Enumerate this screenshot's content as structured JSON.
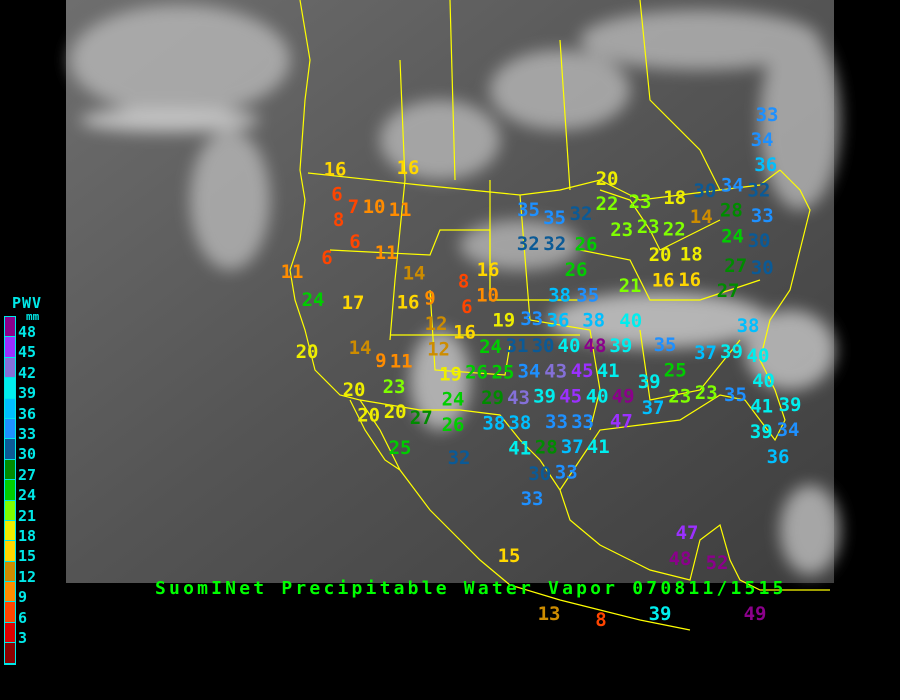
{
  "title": "SuomINet Precipitable Water Vapor 070811/1515",
  "legend": {
    "label": "PWV",
    "unit": "mm",
    "ticks": [
      "48",
      "45",
      "42",
      "39",
      "36",
      "33",
      "30",
      "27",
      "24",
      "21",
      "18",
      "15",
      "12",
      "9",
      "6",
      "3"
    ],
    "colors": [
      "#8b008b",
      "#9b30ff",
      "#8470d8",
      "#00eeee",
      "#00bfff",
      "#1e90ff",
      "#0b5a96",
      "#008b00",
      "#00cd00",
      "#7fff00",
      "#eeee00",
      "#ffd700",
      "#cd8c00",
      "#ff8c00",
      "#ff4500",
      "#dd0000",
      "#8b0000"
    ]
  },
  "stations": [
    "16",
    "6",
    "7",
    "8",
    "10",
    "11",
    "16",
    "6",
    "11",
    "6",
    "11",
    "24",
    "17",
    "14",
    "16",
    "9",
    "8",
    "10",
    "6",
    "16",
    "12",
    "16",
    "19",
    "12",
    "14",
    "9",
    "11",
    "20",
    "19",
    "26",
    "25",
    "24",
    "29",
    "23",
    "20",
    "20",
    "20",
    "27",
    "24",
    "26",
    "25",
    "32",
    "38",
    "38",
    "43",
    "41",
    "28",
    "37",
    "30",
    "33",
    "33",
    "15",
    "13",
    "8",
    "35",
    "35",
    "32",
    "32",
    "32",
    "26",
    "26",
    "21",
    "22",
    "20",
    "23",
    "23",
    "23",
    "22",
    "18",
    "14",
    "28",
    "30",
    "34",
    "20",
    "18",
    "16",
    "16",
    "24",
    "27",
    "27",
    "30",
    "33",
    "34",
    "36",
    "32",
    "33",
    "30",
    "35",
    "38",
    "38",
    "33",
    "36",
    "31",
    "40",
    "30",
    "48",
    "43",
    "45",
    "34",
    "39",
    "45",
    "41",
    "39",
    "40",
    "35",
    "38",
    "37",
    "39",
    "40",
    "49",
    "47",
    "33",
    "33",
    "41",
    "39",
    "25",
    "23",
    "23",
    "37",
    "35",
    "40",
    "40",
    "41",
    "39",
    "39",
    "34",
    "36",
    "47",
    "48",
    "52",
    "49",
    "39"
  ]
}
